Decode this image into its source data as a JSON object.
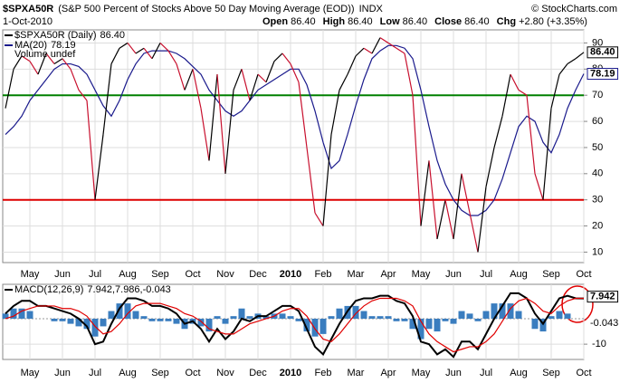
{
  "header": {
    "symbol": "$SPXA50R",
    "name": "(S&P 500 Percent of Stocks Above 50 Day Moving Average (EOD))",
    "exchange": "INDX",
    "date": "1-Oct-2010",
    "quote": [
      {
        "label": "Open",
        "value": "86.40"
      },
      {
        "label": "High",
        "value": "86.40"
      },
      {
        "label": "Low",
        "value": "86.40"
      },
      {
        "label": "Close",
        "value": "86.40"
      },
      {
        "label": "Chg",
        "value": "+2.80 (+3.35%)"
      }
    ],
    "credit": "© StockCharts.com"
  },
  "chart_data": [
    {
      "type": "line",
      "categories": [
        null,
        null,
        null,
        "May",
        null,
        null,
        null,
        "Jun",
        null,
        null,
        null,
        "Jul",
        null,
        null,
        null,
        "Aug",
        null,
        null,
        null,
        "Sep",
        null,
        null,
        null,
        "Oct",
        null,
        null,
        null,
        "Nov",
        null,
        null,
        null,
        "Dec",
        null,
        null,
        null,
        "2010",
        null,
        null,
        null,
        "Feb",
        null,
        null,
        null,
        "Mar",
        null,
        null,
        null,
        "Apr",
        null,
        null,
        null,
        "May",
        null,
        null,
        null,
        "Jun",
        null,
        null,
        null,
        "Jul",
        null,
        null,
        null,
        "Aug",
        null,
        null,
        null,
        "Sep",
        null,
        null,
        null,
        "Oct"
      ],
      "series": [
        {
          "name": "$SPXA50R (Daily)",
          "up_color": "#000000",
          "down_color": "#c8102e",
          "values": [
            65,
            80,
            85,
            83,
            78,
            86,
            82,
            84,
            80,
            72,
            68,
            30,
            55,
            82,
            88,
            90,
            86,
            88,
            84,
            90,
            87,
            82,
            72,
            80,
            65,
            45,
            78,
            40,
            72,
            80,
            68,
            78,
            75,
            83,
            86,
            82,
            75,
            50,
            25,
            20,
            55,
            72,
            78,
            85,
            88,
            86,
            92,
            90,
            88,
            86,
            70,
            20,
            45,
            15,
            30,
            15,
            40,
            25,
            10,
            35,
            50,
            62,
            78,
            72,
            70,
            40,
            30,
            65,
            78,
            82,
            84,
            86.4
          ]
        },
        {
          "name": "MA(20)",
          "color": "#1a1a8c",
          "values": [
            55,
            58,
            62,
            68,
            72,
            76,
            80,
            82,
            82,
            81,
            78,
            72,
            66,
            62,
            68,
            76,
            82,
            86,
            87,
            87,
            87,
            86,
            84,
            81,
            78,
            72,
            68,
            64,
            62,
            64,
            68,
            72,
            74,
            76,
            78,
            80,
            80,
            74,
            64,
            52,
            42,
            45,
            55,
            66,
            76,
            84,
            87,
            89,
            89,
            88,
            84,
            72,
            58,
            45,
            36,
            30,
            26,
            24,
            24,
            26,
            30,
            38,
            48,
            58,
            62,
            60,
            52,
            48,
            55,
            65,
            72,
            78.19
          ]
        }
      ],
      "extra_legend": "Volume undef",
      "ylim": [
        6,
        95
      ],
      "yticks": [
        10,
        20,
        30,
        40,
        50,
        60,
        70,
        80,
        90
      ],
      "grid": true,
      "reference_lines": [
        {
          "value": 70,
          "color": "#008000"
        },
        {
          "value": 30,
          "color": "#dd0000"
        }
      ]
    },
    {
      "type": "macd",
      "series": [
        {
          "name": "MACD(12,26,9)",
          "kind": "line",
          "color": "#000000",
          "values": [
            2,
            5,
            7,
            7,
            5,
            5,
            4,
            3,
            2,
            0,
            -3,
            -10,
            -9,
            -2,
            4,
            8,
            8,
            7,
            5,
            5,
            4,
            2,
            -2,
            -1,
            -4,
            -9,
            -4,
            -8,
            -5,
            0,
            -1,
            1,
            1,
            3,
            5,
            5,
            3,
            -4,
            -11,
            -14,
            -8,
            -2,
            3,
            7,
            8,
            8,
            9,
            9,
            7,
            6,
            1,
            -9,
            -10,
            -14,
            -12,
            -15,
            -9,
            -9,
            -12,
            -6,
            0,
            5,
            10,
            10,
            8,
            2,
            -2,
            3,
            8,
            9,
            8,
            7.942
          ]
        },
        {
          "kind": "line",
          "color": "#e00000",
          "values": [
            0,
            1,
            3,
            4,
            5,
            5,
            5,
            4,
            4,
            3,
            1,
            -3,
            -6,
            -5,
            -2,
            2,
            5,
            6,
            6,
            6,
            5,
            4,
            2,
            1,
            -1,
            -4,
            -5,
            -6,
            -6,
            -4,
            -2,
            -1,
            0,
            1,
            3,
            4,
            4,
            1,
            -4,
            -8,
            -9,
            -6,
            -2,
            2,
            5,
            7,
            8,
            8,
            8,
            7,
            5,
            -1,
            -6,
            -9,
            -11,
            -13,
            -12,
            -11,
            -11,
            -9,
            -6,
            -1,
            4,
            7,
            8,
            6,
            3,
            2,
            5,
            7,
            8,
            7.986
          ]
        },
        {
          "kind": "histogram",
          "color": "#3a7dbf",
          "values": [
            2,
            4,
            4,
            3,
            0,
            0,
            -1,
            -1,
            -2,
            -3,
            -4,
            -7,
            -3,
            3,
            6,
            6,
            3,
            1,
            -1,
            -1,
            -1,
            -2,
            -4,
            -2,
            -3,
            -5,
            1,
            -2,
            1,
            4,
            1,
            2,
            1,
            2,
            2,
            1,
            -1,
            -5,
            -7,
            -6,
            1,
            4,
            5,
            5,
            3,
            1,
            1,
            1,
            -1,
            -1,
            -4,
            -8,
            -4,
            -5,
            -1,
            -2,
            3,
            2,
            -1,
            3,
            6,
            6,
            6,
            3,
            0,
            -4,
            -5,
            1,
            3,
            2,
            0,
            -0.043
          ]
        }
      ],
      "legend_separator": ", ",
      "ylim": [
        -16,
        13.5
      ],
      "yticks": [
        -10
      ],
      "grid": true
    }
  ]
}
